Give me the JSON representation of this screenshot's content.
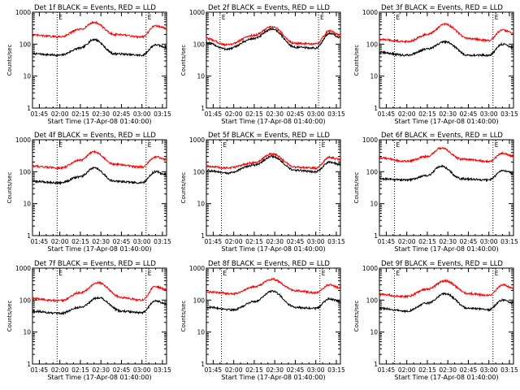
{
  "chart_data": [
    {
      "type": "line",
      "title": "Det 1f BLACK = Events, RED = LLD",
      "xlabel": "Start Time (17-Apr-08 01:40:00)",
      "ylabel": "Counts/sec",
      "yscale": "log",
      "ylim": [
        1,
        1000
      ],
      "xlim": [
        "01:40",
        "03:18"
      ],
      "xticks": [
        "01:45",
        "02:00",
        "02:15",
        "02:30",
        "02:45",
        "03:00",
        "03:15"
      ],
      "yticks": [
        "1",
        "10",
        "100",
        "1000"
      ],
      "markers": [
        "01:58",
        "03:03"
      ],
      "marker_label": "E",
      "series": [
        {
          "color": "#000000",
          "times": [
            "01:40",
            "02:00",
            "02:15",
            "02:25",
            "02:40",
            "03:00",
            "03:10",
            "03:18"
          ],
          "values": [
            50,
            45,
            75,
            140,
            50,
            45,
            95,
            80
          ]
        },
        {
          "color": "#ff0000",
          "times": [
            "01:40",
            "02:00",
            "02:15",
            "02:25",
            "02:40",
            "03:00",
            "03:10",
            "03:18"
          ],
          "values": [
            190,
            170,
            290,
            480,
            200,
            170,
            380,
            310
          ]
        }
      ]
    },
    {
      "type": "line",
      "title": "Det 2f BLACK = Events, RED = LLD",
      "xlabel": "Start Time (17-Apr-08 01:40:00)",
      "ylabel": "Counts/sec",
      "yscale": "log",
      "ylim": [
        1,
        1000
      ],
      "xlim": [
        "01:40",
        "03:18"
      ],
      "xticks": [
        "01:45",
        "02:00",
        "02:15",
        "02:30",
        "02:45",
        "03:00",
        "03:15"
      ],
      "yticks": [
        "1",
        "10",
        "100",
        "1000"
      ],
      "markers": [
        "01:50",
        "03:02"
      ],
      "marker_label": "E",
      "series": [
        {
          "color": "#000000",
          "times": [
            "01:40",
            "01:55",
            "02:15",
            "02:28",
            "02:45",
            "03:00",
            "03:10",
            "03:18"
          ],
          "values": [
            110,
            70,
            150,
            300,
            80,
            75,
            220,
            160
          ]
        },
        {
          "color": "#ff0000",
          "times": [
            "01:40",
            "01:55",
            "02:15",
            "02:28",
            "02:45",
            "03:00",
            "03:10",
            "03:18"
          ],
          "values": [
            150,
            95,
            190,
            350,
            105,
            100,
            260,
            190
          ]
        }
      ]
    },
    {
      "type": "line",
      "title": "Det 3f BLACK = Events, RED = LLD",
      "xlabel": "Start Time (17-Apr-08 01:40:00)",
      "ylabel": "Counts/sec",
      "yscale": "log",
      "ylim": [
        1,
        1000
      ],
      "xlim": [
        "01:40",
        "03:18"
      ],
      "xticks": [
        "01:45",
        "02:00",
        "02:15",
        "02:30",
        "02:45",
        "03:00",
        "03:15"
      ],
      "yticks": [
        "1",
        "10",
        "100",
        "1000"
      ],
      "markers": [
        "01:51",
        "03:03"
      ],
      "marker_label": "E",
      "series": [
        {
          "color": "#000000",
          "times": [
            "01:40",
            "02:00",
            "02:15",
            "02:28",
            "02:45",
            "03:00",
            "03:10",
            "03:18"
          ],
          "values": [
            55,
            45,
            70,
            120,
            45,
            45,
            100,
            80
          ]
        },
        {
          "color": "#ff0000",
          "times": [
            "01:40",
            "02:00",
            "02:15",
            "02:28",
            "02:45",
            "03:00",
            "03:10",
            "03:18"
          ],
          "values": [
            140,
            120,
            200,
            420,
            150,
            130,
            280,
            220
          ]
        }
      ]
    },
    {
      "type": "line",
      "title": "Det 4f BLACK = Events, RED = LLD",
      "xlabel": "Start Time (17-Apr-08 01:40:00)",
      "ylabel": "Counts/sec",
      "yscale": "log",
      "ylim": [
        1,
        1000
      ],
      "xlim": [
        "01:40",
        "03:18"
      ],
      "xticks": [
        "01:45",
        "02:00",
        "02:15",
        "02:30",
        "02:45",
        "03:00",
        "03:15"
      ],
      "yticks": [
        "1",
        "10",
        "100",
        "1000"
      ],
      "markers": [
        "01:58",
        "03:03"
      ],
      "marker_label": "E",
      "series": [
        {
          "color": "#000000",
          "times": [
            "01:40",
            "02:00",
            "02:15",
            "02:25",
            "02:40",
            "03:00",
            "03:10",
            "03:18"
          ],
          "values": [
            50,
            45,
            70,
            130,
            50,
            45,
            100,
            80
          ]
        },
        {
          "color": "#ff0000",
          "times": [
            "01:40",
            "02:00",
            "02:15",
            "02:25",
            "02:40",
            "03:00",
            "03:10",
            "03:18"
          ],
          "values": [
            150,
            130,
            230,
            420,
            170,
            140,
            290,
            240
          ]
        }
      ]
    },
    {
      "type": "line",
      "title": "Det 5f BLACK = Events, RED = LLD",
      "xlabel": "Start Time (17-Apr-08 01:40:00)",
      "ylabel": "Counts/sec",
      "yscale": "log",
      "ylim": [
        1,
        1000
      ],
      "xlim": [
        "01:40",
        "03:18"
      ],
      "xticks": [
        "01:45",
        "02:00",
        "02:15",
        "02:30",
        "02:45",
        "03:00",
        "03:15"
      ],
      "yticks": [
        "1",
        "10",
        "100",
        "1000"
      ],
      "markers": [
        "01:51",
        "03:03"
      ],
      "marker_label": "E",
      "series": [
        {
          "color": "#000000",
          "times": [
            "01:40",
            "01:55",
            "02:15",
            "02:28",
            "02:45",
            "03:00",
            "03:10",
            "03:18"
          ],
          "values": [
            110,
            90,
            160,
            300,
            110,
            100,
            200,
            170
          ]
        },
        {
          "color": "#ff0000",
          "times": [
            "01:40",
            "01:55",
            "02:15",
            "02:28",
            "02:45",
            "03:00",
            "03:10",
            "03:18"
          ],
          "values": [
            150,
            130,
            190,
            360,
            140,
            130,
            280,
            240
          ]
        }
      ]
    },
    {
      "type": "line",
      "title": "Det 6f BLACK = Events, RED = LLD",
      "xlabel": "Start Time (17-Apr-08 01:40:00)",
      "ylabel": "Counts/sec",
      "yscale": "log",
      "ylim": [
        1,
        1000
      ],
      "xlim": [
        "01:40",
        "03:18"
      ],
      "xticks": [
        "01:45",
        "02:00",
        "02:15",
        "02:30",
        "02:45",
        "03:00",
        "03:15"
      ],
      "yticks": [
        "1",
        "10",
        "100",
        "1000"
      ],
      "markers": [
        "01:51",
        "03:03"
      ],
      "marker_label": "E",
      "series": [
        {
          "color": "#000000",
          "times": [
            "01:40",
            "02:00",
            "02:15",
            "02:25",
            "02:40",
            "03:00",
            "03:10",
            "03:18"
          ],
          "values": [
            60,
            55,
            75,
            150,
            60,
            55,
            110,
            90
          ]
        },
        {
          "color": "#ff0000",
          "times": [
            "01:40",
            "02:00",
            "02:15",
            "02:25",
            "02:40",
            "03:00",
            "03:10",
            "03:18"
          ],
          "values": [
            270,
            210,
            300,
            550,
            250,
            210,
            380,
            310
          ]
        }
      ]
    },
    {
      "type": "line",
      "title": "Det 7f BLACK = Events, RED = LLD",
      "xlabel": "Start Time (17-Apr-08 01:40:00)",
      "ylabel": "Counts/sec",
      "yscale": "log",
      "ylim": [
        1,
        1000
      ],
      "xlim": [
        "01:40",
        "03:18"
      ],
      "xticks": [
        "01:45",
        "02:00",
        "02:15",
        "02:30",
        "02:45",
        "03:00",
        "03:15"
      ],
      "yticks": [
        "1",
        "10",
        "100",
        "1000"
      ],
      "markers": [
        "01:58",
        "03:03"
      ],
      "marker_label": "E",
      "series": [
        {
          "color": "#000000",
          "times": [
            "01:40",
            "02:00",
            "02:15",
            "02:28",
            "02:45",
            "03:00",
            "03:10",
            "03:18"
          ],
          "values": [
            45,
            38,
            60,
            120,
            45,
            40,
            95,
            75
          ]
        },
        {
          "color": "#ff0000",
          "times": [
            "01:40",
            "02:00",
            "02:15",
            "02:28",
            "02:45",
            "03:00",
            "03:10",
            "03:18"
          ],
          "values": [
            110,
            95,
            170,
            350,
            120,
            100,
            270,
            210
          ]
        }
      ]
    },
    {
      "type": "line",
      "title": "Det 8f BLACK = Events, RED = LLD",
      "xlabel": "Start Time (17-Apr-08 01:40:00)",
      "ylabel": "Counts/sec",
      "yscale": "log",
      "ylim": [
        1,
        1000
      ],
      "xlim": [
        "01:40",
        "03:18"
      ],
      "xticks": [
        "01:45",
        "02:00",
        "02:15",
        "02:30",
        "02:45",
        "03:00",
        "03:15"
      ],
      "yticks": [
        "1",
        "10",
        "100",
        "1000"
      ],
      "markers": [
        "01:51",
        "03:03"
      ],
      "marker_label": "E",
      "series": [
        {
          "color": "#000000",
          "times": [
            "01:40",
            "02:00",
            "02:15",
            "02:28",
            "02:45",
            "03:00",
            "03:10",
            "03:18"
          ],
          "values": [
            60,
            50,
            90,
            190,
            60,
            55,
            110,
            90
          ]
        },
        {
          "color": "#ff0000",
          "times": [
            "01:40",
            "02:00",
            "02:15",
            "02:28",
            "02:45",
            "03:00",
            "03:10",
            "03:18"
          ],
          "values": [
            180,
            160,
            260,
            450,
            200,
            170,
            300,
            240
          ]
        }
      ]
    },
    {
      "type": "line",
      "title": "Det 9f BLACK = Events, RED = LLD",
      "xlabel": "Start Time (17-Apr-08 01:40:00)",
      "ylabel": "Counts/sec",
      "yscale": "log",
      "ylim": [
        1,
        1000
      ],
      "xlim": [
        "01:40",
        "03:18"
      ],
      "xticks": [
        "01:45",
        "02:00",
        "02:15",
        "02:30",
        "02:45",
        "03:00",
        "03:15"
      ],
      "yticks": [
        "1",
        "10",
        "100",
        "1000"
      ],
      "markers": [
        "01:51",
        "03:03"
      ],
      "marker_label": "E",
      "series": [
        {
          "color": "#000000",
          "times": [
            "01:40",
            "02:00",
            "02:15",
            "02:28",
            "02:45",
            "03:00",
            "03:10",
            "03:18"
          ],
          "values": [
            55,
            45,
            80,
            160,
            55,
            50,
            100,
            80
          ]
        },
        {
          "color": "#ff0000",
          "times": [
            "01:40",
            "02:00",
            "02:15",
            "02:28",
            "02:45",
            "03:00",
            "03:10",
            "03:18"
          ],
          "values": [
            150,
            130,
            220,
            400,
            160,
            140,
            300,
            240
          ]
        }
      ]
    }
  ]
}
